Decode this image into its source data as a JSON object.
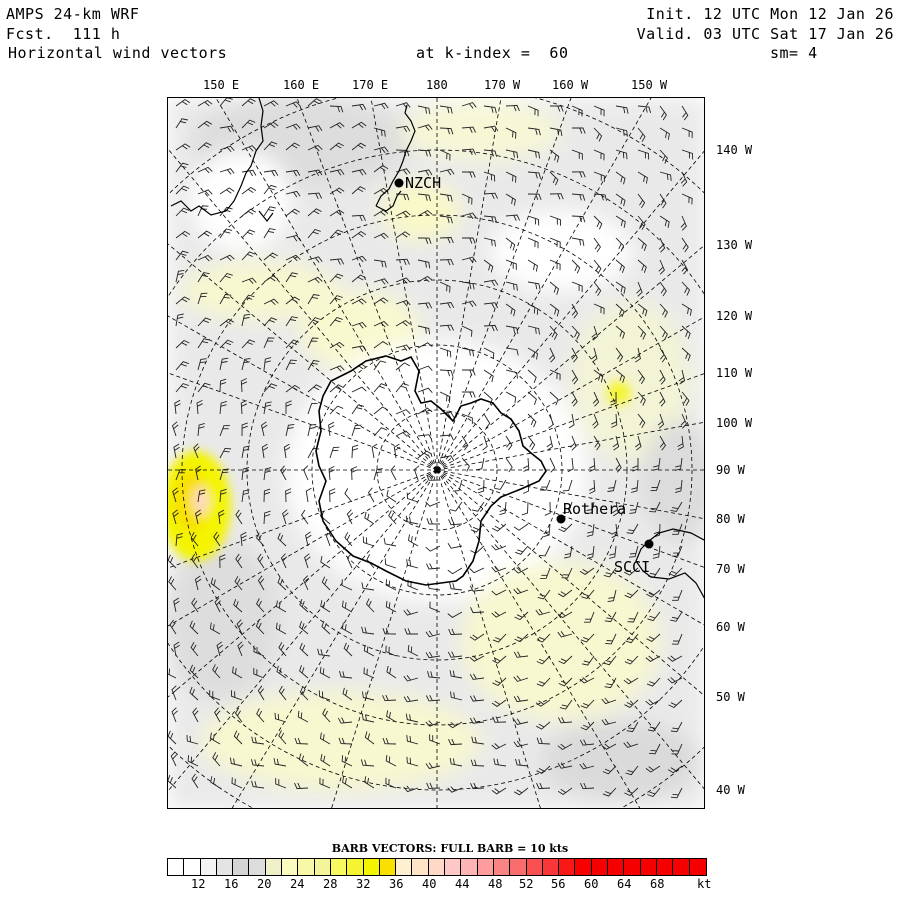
{
  "header": {
    "model": "AMPS 24-km WRF",
    "forecast": "Fcst.  111 h",
    "field": "Horizontal wind vectors",
    "level": "at k-index =  60",
    "init": "Init. 12 UTC Mon 12 Jan 26",
    "valid": "Valid. 03 UTC Sat 17 Jan 26",
    "smoothing": "sm= 4"
  },
  "longitude_labels": [
    "150 E",
    "160 E",
    "170 E",
    "180",
    "170 W",
    "160 W",
    "150 W"
  ],
  "latitude_labels": [
    "140 W",
    "130 W",
    "120 W",
    "110 W",
    "100 W",
    "90 W",
    "80 W",
    "70 W",
    "60 W",
    "50 W",
    "40 W"
  ],
  "stations": [
    "NZCH",
    "Rothera",
    "SCCI"
  ],
  "legend": {
    "title": "BARB VECTORS:  FULL BARB = 10 kts",
    "labels": [
      "12",
      "16",
      "20",
      "24",
      "28",
      "32",
      "36",
      "40",
      "44",
      "48",
      "52",
      "56",
      "60",
      "64",
      "68"
    ],
    "unit": "kt",
    "colors": [
      "#ffffff",
      "#ffffff",
      "#f4f4f4",
      "#e4e4e4",
      "#d4d4d4",
      "#dcdcdc",
      "#efefc8",
      "#fbfbc0",
      "#f8f8a8",
      "#f4f49a",
      "#f8f860",
      "#f4f430",
      "#f4f400",
      "#f8e000",
      "#fff0d0",
      "#ffe4c8",
      "#ffd8c8",
      "#ffc8c8",
      "#ffb4b4",
      "#ff9c9c",
      "#f88484",
      "#f86c6c",
      "#f85050",
      "#f83838",
      "#f81818",
      "#f80000",
      "#f40000"
    ]
  }
}
